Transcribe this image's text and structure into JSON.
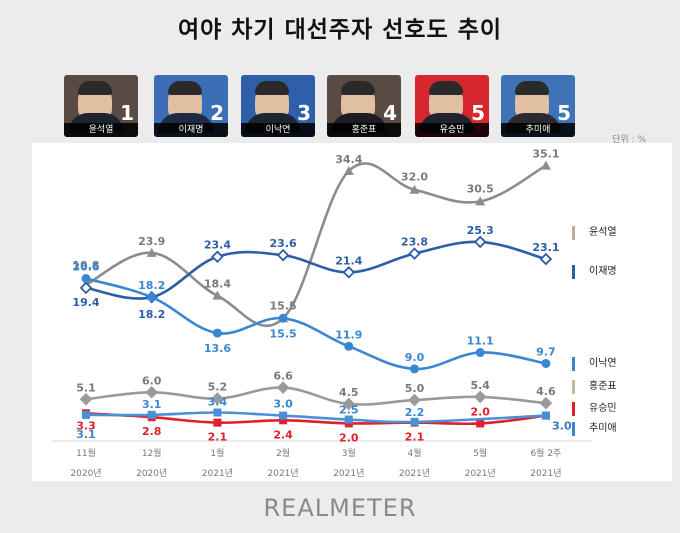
{
  "title": "여야 차기 대선주자 선호도 추이",
  "unit_label": "단위 : %",
  "logo": "REALMETER",
  "candidates": [
    {
      "name": "윤석열",
      "rank": "1",
      "bg": "#5a4a44",
      "suit": "#1d2430"
    },
    {
      "name": "이재명",
      "rank": "2",
      "bg": "#3a6fb5",
      "suit": "#1f2a44"
    },
    {
      "name": "이낙연",
      "rank": "3",
      "bg": "#2f5fa8",
      "suit": "#1e2634"
    },
    {
      "name": "홍준표",
      "rank": "4",
      "bg": "#5a4a44",
      "suit": "#1c1c22"
    },
    {
      "name": "유승민",
      "rank": "5",
      "bg": "#d6262e",
      "suit": "#20242e"
    },
    {
      "name": "추미애",
      "rank": "5",
      "bg": "#3f73b8",
      "suit": "#2a2a30"
    }
  ],
  "legend": [
    {
      "label": "윤석열",
      "color": "#bfae9e"
    },
    {
      "label": "이재명",
      "color": "#2d5ea8"
    },
    {
      "label": "이낙연",
      "color": "#3b86d2"
    },
    {
      "label": "홍준표",
      "color": "#c9b7a6"
    },
    {
      "label": "유승민",
      "color": "#e0202c"
    },
    {
      "label": "추미애",
      "color": "#3b86d2"
    }
  ],
  "chart_data": {
    "type": "line",
    "categories": [
      {
        "month": "11월",
        "year": "2020년"
      },
      {
        "month": "12월",
        "year": "2020년"
      },
      {
        "month": "1월",
        "year": "2021년"
      },
      {
        "month": "2월",
        "year": "2021년"
      },
      {
        "month": "3월",
        "year": "2021년"
      },
      {
        "month": "4월",
        "year": "2021년"
      },
      {
        "month": "5월",
        "year": "2021년"
      },
      {
        "month": "6월 2주",
        "year": "2021년"
      }
    ],
    "ylim": [
      0,
      38
    ],
    "series": [
      {
        "name": "윤석열",
        "color": "#8c8c8c",
        "marker": "triangle",
        "label_color": "#7a7a7a",
        "values": [
          19.8,
          23.9,
          18.4,
          15.5,
          34.4,
          32.0,
          30.5,
          35.1
        ],
        "labels": [
          "19.8",
          "23.9",
          "18.4",
          "15.5",
          "34.4",
          "32.0",
          "30.5",
          "35.1"
        ]
      },
      {
        "name": "이재명",
        "color": "#2d5ea8",
        "marker": "diamond",
        "label_color": "#2d5ea8",
        "values": [
          19.4,
          18.2,
          23.4,
          23.6,
          21.4,
          23.8,
          25.3,
          23.1
        ],
        "labels": [
          "19.4",
          "18.2",
          "23.4",
          "23.6",
          "21.4",
          "23.8",
          "25.3",
          "23.1"
        ]
      },
      {
        "name": "이낙연",
        "color": "#3b86d2",
        "marker": "circle",
        "label_color": "#3b86d2",
        "values": [
          20.6,
          18.2,
          13.6,
          15.5,
          11.9,
          9.0,
          11.1,
          9.7
        ],
        "labels": [
          "20.6",
          "18.2",
          "13.6",
          "15.5",
          "11.9",
          "9.0",
          "11.1",
          "9.7"
        ]
      },
      {
        "name": "홍준표",
        "color": "#9a9a9a",
        "marker": "diamond",
        "label_color": "#7a7a7a",
        "values": [
          5.1,
          6.0,
          5.2,
          6.6,
          4.5,
          5.0,
          5.4,
          4.6
        ],
        "labels": [
          "5.1",
          "6.0",
          "5.2",
          "6.6",
          "4.5",
          "5.0",
          "5.4",
          "4.6"
        ]
      },
      {
        "name": "유승민",
        "color": "#e0202c",
        "marker": "square",
        "label_color": "#e0202c",
        "values": [
          3.3,
          2.8,
          2.1,
          2.4,
          2.0,
          2.1,
          2.0,
          3.0
        ],
        "labels": [
          "3.3",
          "2.8",
          "2.1",
          "2.4",
          "2.0",
          "2.1",
          "2.0",
          "3.0"
        ]
      },
      {
        "name": "추미애",
        "color": "#4a90d9",
        "marker": "square",
        "label_color": "#3b86d2",
        "values": [
          3.1,
          3.1,
          3.4,
          3.0,
          2.5,
          2.2,
          null,
          3.0
        ],
        "labels": [
          "3.1",
          "3.1",
          "3.4",
          "3.0",
          "2.5",
          "2.2",
          "",
          "3.0"
        ]
      }
    ]
  }
}
